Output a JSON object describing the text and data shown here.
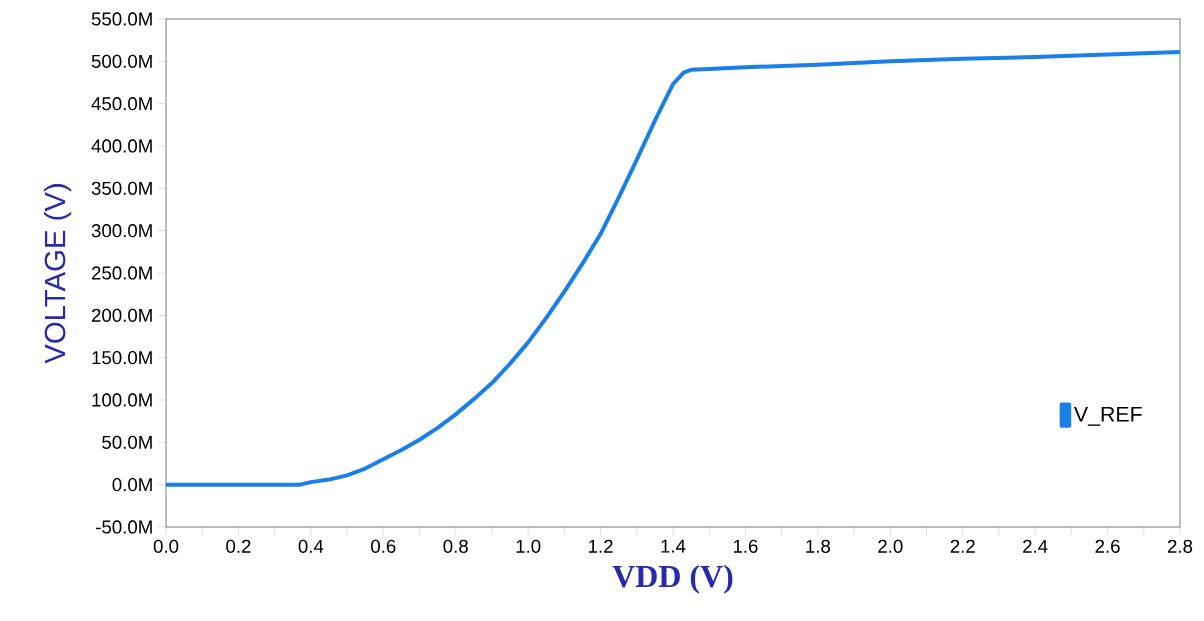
{
  "chart_data": {
    "type": "line",
    "xlabel": "VDD (V)",
    "ylabel": "VOLTAGE (V)",
    "x": [
      0,
      0.1,
      0.2,
      0.3,
      0.37,
      0.4,
      0.45,
      0.5,
      0.55,
      0.6,
      0.65,
      0.7,
      0.75,
      0.8,
      0.85,
      0.9,
      0.95,
      1.0,
      1.05,
      1.1,
      1.15,
      1.2,
      1.25,
      1.3,
      1.35,
      1.4,
      1.43,
      1.45,
      1.5,
      1.6,
      1.8,
      2.0,
      2.2,
      2.4,
      2.6,
      2.8
    ],
    "series": [
      {
        "name": "V_REF",
        "color": "#1a7fe6",
        "values": [
          0,
          0,
          0,
          0,
          0,
          3,
          6,
          11,
          19,
          30,
          41,
          53,
          67,
          83,
          101,
          120,
          143,
          168,
          197,
          228,
          261,
          296,
          339,
          384,
          430,
          473,
          487,
          490,
          491,
          493,
          496,
          500,
          503,
          505,
          508,
          511
        ]
      }
    ],
    "xlim": [
      0,
      2.8
    ],
    "ylim": [
      -50,
      550
    ],
    "xticks": [
      {
        "value": 0,
        "label": "0.0"
      },
      {
        "value": 0.2,
        "label": "0.2"
      },
      {
        "value": 0.4,
        "label": "0.4"
      },
      {
        "value": 0.6,
        "label": "0.6"
      },
      {
        "value": 0.8,
        "label": "0.8"
      },
      {
        "value": 1.0,
        "label": "1.0"
      },
      {
        "value": 1.2,
        "label": "1.2"
      },
      {
        "value": 1.4,
        "label": "1.4"
      },
      {
        "value": 1.6,
        "label": "1.6"
      },
      {
        "value": 1.8,
        "label": "1.8"
      },
      {
        "value": 2.0,
        "label": "2.0"
      },
      {
        "value": 2.2,
        "label": "2.2"
      },
      {
        "value": 2.4,
        "label": "2.4"
      },
      {
        "value": 2.6,
        "label": "2.6"
      },
      {
        "value": 2.8,
        "label": "2.8"
      }
    ],
    "yticks": [
      {
        "value": -50,
        "label": "-50.0M"
      },
      {
        "value": 0,
        "label": "0.0M"
      },
      {
        "value": 50,
        "label": "50.0M"
      },
      {
        "value": 100,
        "label": "100.0M"
      },
      {
        "value": 150,
        "label": "150.0M"
      },
      {
        "value": 200,
        "label": "200.0M"
      },
      {
        "value": 250,
        "label": "250.0M"
      },
      {
        "value": 300,
        "label": "300.0M"
      },
      {
        "value": 350,
        "label": "350.0M"
      },
      {
        "value": 400,
        "label": "400.0M"
      },
      {
        "value": 450,
        "label": "450.0M"
      },
      {
        "value": 500,
        "label": "500.0M"
      },
      {
        "value": 550,
        "label": "550.0M"
      }
    ],
    "legend": "right",
    "grid": false,
    "marker": "none",
    "line_style": "solid"
  }
}
